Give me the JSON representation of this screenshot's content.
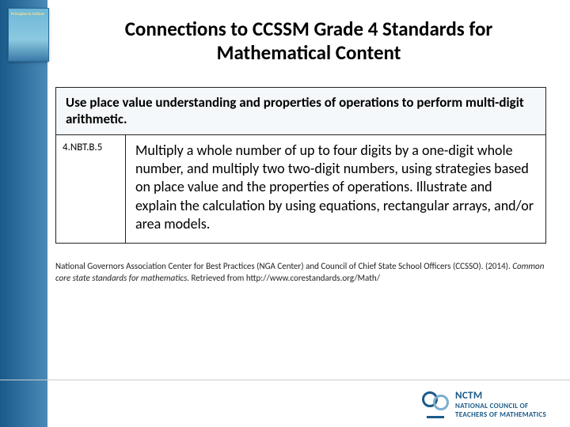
{
  "colors": {
    "stripe_start": "#1a5a8a",
    "stripe_end": "#4a8ab8",
    "header_bg": "#f4f8fb",
    "border": "#222222",
    "text": "#000000",
    "logo_primary": "#1a5a8a",
    "logo_secondary": "#7aaed0"
  },
  "thumb": {
    "caption": "Principles to Actions"
  },
  "title": "Connections to CCSSM Grade 4 Standards for Mathematical Content",
  "table": {
    "header": "Use place value understanding and properties of operations to perform multi-digit arithmetic.",
    "code": "4.NBT.B.5",
    "description": "Multiply a whole number of up to four digits by a one-digit whole number, and multiply two two-digit numbers, using strategies based on place value and the properties of operations. Illustrate and explain the calculation by using equations, rectangular arrays, and/or area models."
  },
  "citation": {
    "line1_a": "National Governors Association Center for Best Practices (NGA Center) and Council of Chief  State School Officers (CCSSO). (2014). ",
    "line1_italic": "Common core state standards for mathematics.",
    "line1_b": " Retrieved from http://www.corestandards.org/Math/"
  },
  "logo": {
    "abbr": "NCTM",
    "full1": "NATIONAL COUNCIL OF",
    "full2": "TEACHERS OF MATHEMATICS"
  }
}
